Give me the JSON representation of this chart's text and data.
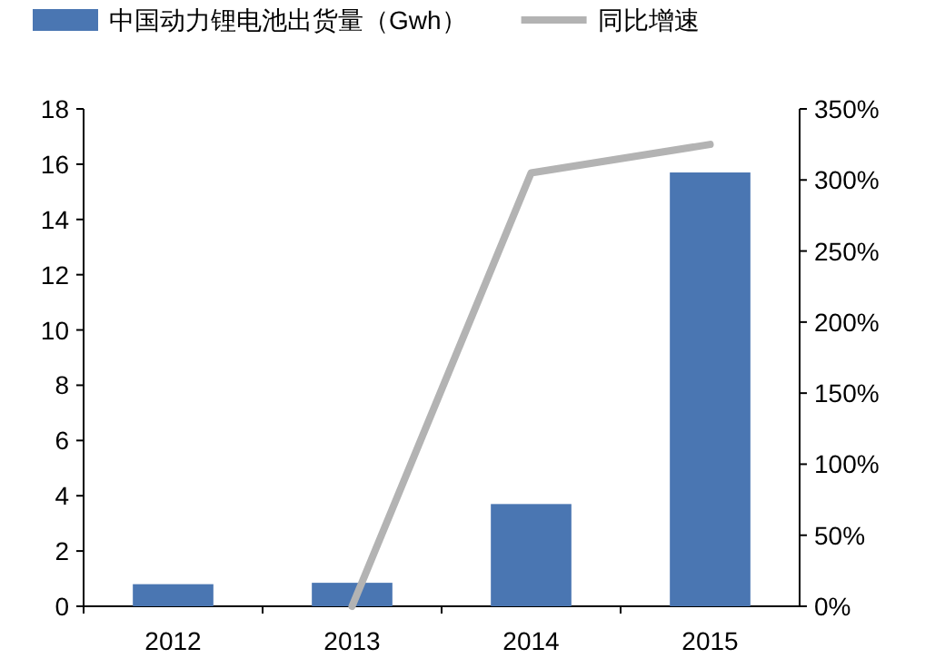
{
  "chart_data": {
    "type": "bar",
    "categories": [
      "2012",
      "2013",
      "2014",
      "2015"
    ],
    "series": [
      {
        "name": "中国动力锂电池出货量（Gwh）",
        "color": "#4a76b2",
        "values": [
          0.8,
          0.85,
          3.7,
          15.7
        ]
      },
      {
        "name": "同比增速",
        "type": "line",
        "axis": "y2",
        "color": "#b3b3b3",
        "values": [
          null,
          0,
          305,
          325
        ]
      }
    ],
    "ylim": [
      0,
      18
    ],
    "yticks": [
      0,
      2,
      4,
      6,
      8,
      10,
      12,
      14,
      16,
      18
    ],
    "y2lim": [
      0,
      350
    ],
    "y2ticks": [
      {
        "value": 0,
        "label": "0%"
      },
      {
        "value": 50,
        "label": "50%"
      },
      {
        "value": 100,
        "label": "100%"
      },
      {
        "value": 150,
        "label": "150%"
      },
      {
        "value": 200,
        "label": "200%"
      },
      {
        "value": 250,
        "label": "250%"
      },
      {
        "value": 300,
        "label": "300%"
      },
      {
        "value": 350,
        "label": "350%"
      }
    ],
    "legend": "top",
    "grid": false,
    "marker": "none"
  }
}
